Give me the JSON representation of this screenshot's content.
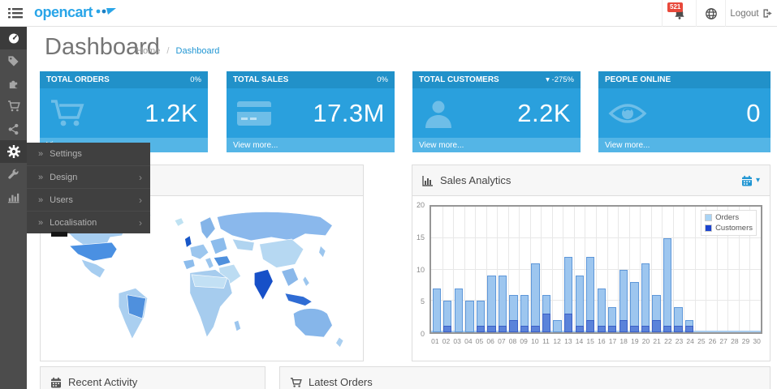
{
  "topbar": {
    "logo": "opencart",
    "badge": "521",
    "logout": "Logout"
  },
  "page": {
    "title": "Dashboard",
    "breadcrumb": {
      "home": "Home",
      "sep": "/",
      "current": "Dashboard"
    }
  },
  "sidebar": {
    "items": [
      "dashboard",
      "catalog",
      "extensions",
      "sales",
      "marketing",
      "system",
      "tools",
      "reports"
    ]
  },
  "submenu": {
    "bullet": "»",
    "items": [
      {
        "label": "Settings",
        "arrow": ""
      },
      {
        "label": "Design",
        "arrow": "›"
      },
      {
        "label": "Users",
        "arrow": "›"
      },
      {
        "label": "Localisation",
        "arrow": "›"
      }
    ]
  },
  "tiles": [
    {
      "label": "TOTAL ORDERS",
      "delta": "0%",
      "value": "1.2K",
      "footer": "View more...",
      "icon": "shopping-cart"
    },
    {
      "label": "TOTAL SALES",
      "delta": "0%",
      "value": "17.3M",
      "footer": "View more...",
      "icon": "credit-card"
    },
    {
      "label": "TOTAL CUSTOMERS",
      "delta": "▾ -275%",
      "value": "2.2K",
      "footer": "View more...",
      "icon": "user"
    },
    {
      "label": "PEOPLE ONLINE",
      "delta": "",
      "value": "0",
      "footer": "View more...",
      "icon": "eye"
    }
  ],
  "panels": {
    "analytics": {
      "title": "Sales Analytics"
    },
    "recent_activity": {
      "title": "Recent Activity"
    },
    "latest_orders": {
      "title": "Latest Orders"
    }
  },
  "colors": {
    "brand": "#29a5e8",
    "tile_header": "#2191c9",
    "tile_body": "#2aa0dd",
    "tile_footer": "#54b5e6",
    "badge_red": "#e8493b",
    "breadcrumb_link": "#2196d3"
  },
  "chart_data": {
    "type": "bar",
    "title": "Sales Analytics",
    "x": [
      "01",
      "02",
      "03",
      "04",
      "05",
      "06",
      "07",
      "08",
      "09",
      "10",
      "11",
      "12",
      "13",
      "14",
      "15",
      "16",
      "17",
      "18",
      "19",
      "20",
      "21",
      "22",
      "23",
      "24",
      "25",
      "26",
      "27",
      "28",
      "29",
      "30"
    ],
    "series": [
      {
        "name": "Orders",
        "legend_color": "#a9d4f5",
        "fill": "#9dc6ef",
        "border": "#5e97d9",
        "values": [
          7,
          5,
          7,
          5,
          5,
          9,
          9,
          6,
          6,
          11,
          6,
          2,
          12,
          9,
          12,
          7,
          4,
          10,
          8,
          11,
          6,
          15,
          4,
          2,
          0,
          0,
          0,
          0,
          0,
          0
        ]
      },
      {
        "name": "Customers",
        "legend_color": "#1c44cf",
        "fill": "#5b83da",
        "border": "#3a5fc6",
        "values": [
          0,
          1,
          0,
          0,
          1,
          1,
          1,
          2,
          1,
          1,
          3,
          0,
          3,
          1,
          2,
          1,
          1,
          2,
          1,
          1,
          2,
          1,
          1,
          1,
          0,
          0,
          0,
          0,
          0,
          0
        ]
      }
    ],
    "ylim": [
      0,
      20
    ],
    "yticks": [
      0,
      5,
      10,
      15,
      20
    ],
    "xlabel": "",
    "ylabel": "",
    "grid": true,
    "legend_position": "top-right"
  }
}
